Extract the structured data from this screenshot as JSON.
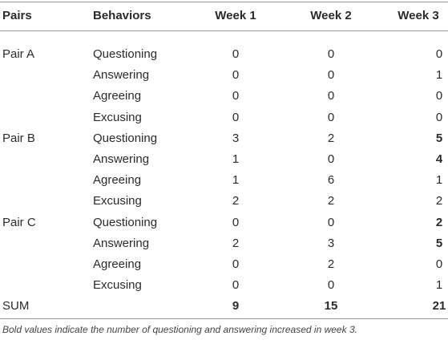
{
  "table": {
    "header": [
      "Pairs",
      "Behaviors",
      "Week 1",
      "Week 2",
      "Week 3"
    ],
    "rows": [
      {
        "pair": "Pair A",
        "behavior": "Questioning",
        "values": [
          0,
          0,
          0
        ]
      },
      {
        "behavior": "Answering",
        "values": [
          0,
          0,
          1
        ]
      },
      {
        "behavior": "Agreeing",
        "values": [
          0,
          0,
          0
        ]
      },
      {
        "behavior": "Excusing",
        "values": [
          0,
          0,
          0
        ]
      },
      {
        "pair": "Pair B",
        "behavior": "Questioning",
        "values": [
          3,
          2,
          5
        ],
        "bold": [
          false,
          false,
          true
        ]
      },
      {
        "behavior": "Answering",
        "values": [
          1,
          0,
          4
        ],
        "bold": [
          false,
          false,
          true
        ]
      },
      {
        "behavior": "Agreeing",
        "values": [
          1,
          6,
          1
        ]
      },
      {
        "behavior": "Excusing",
        "values": [
          2,
          2,
          2
        ]
      },
      {
        "pair": "Pair C",
        "behavior": "Questioning",
        "values": [
          0,
          0,
          2
        ],
        "bold": [
          false,
          false,
          true
        ]
      },
      {
        "behavior": "Answering",
        "values": [
          2,
          3,
          5
        ],
        "bold": [
          false,
          false,
          true
        ]
      },
      {
        "behavior": "Agreeing",
        "values": [
          0,
          2,
          0
        ]
      },
      {
        "behavior": "Excusing",
        "values": [
          0,
          0,
          1
        ]
      },
      {
        "pair": "SUM",
        "values": [
          9,
          15,
          21
        ],
        "bold": [
          true,
          true,
          true
        ]
      }
    ],
    "footnote": "Bold values indicate the number of questioning and answering increased in week 3."
  }
}
